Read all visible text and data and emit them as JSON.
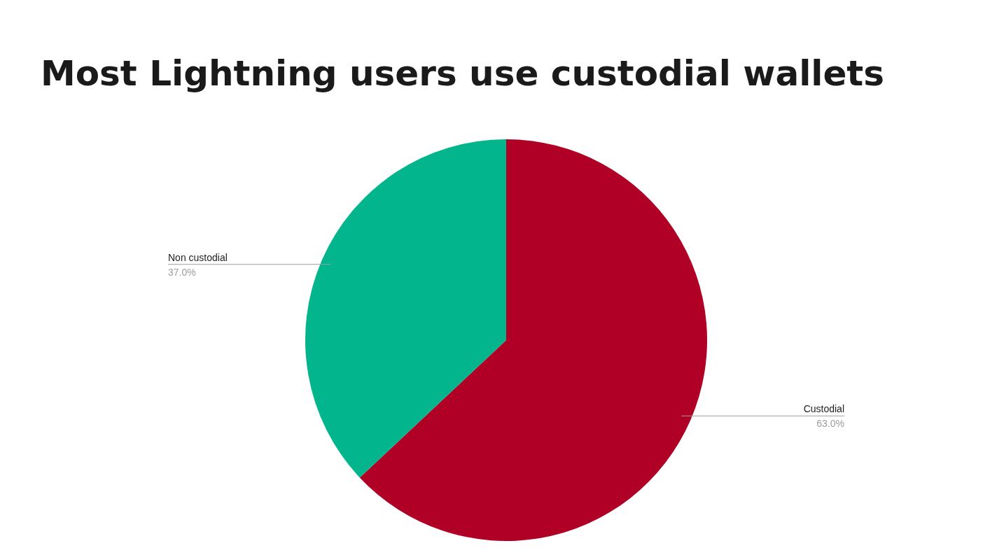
{
  "chart_data": {
    "type": "pie",
    "title": "Most Lightning users use custodial wallets",
    "categories": [
      "Custodial",
      "Non custodial"
    ],
    "values": [
      63,
      37
    ],
    "colors": [
      "#b10026",
      "#02b58c"
    ],
    "value_labels": [
      "63.0%",
      "37.0%"
    ],
    "legend": false
  }
}
